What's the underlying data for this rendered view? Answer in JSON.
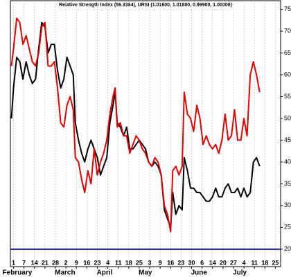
{
  "chart_data": {
    "type": "line",
    "title": "Relative Strength Index (56.3364), URSI (1.01600, 1.01800, 0.99900, 1.00000)",
    "xlim": [
      -0.3,
      25.5
    ],
    "xticks": [
      {
        "value": 0,
        "label": "1"
      },
      {
        "value": 1,
        "label": "7"
      },
      {
        "value": 2,
        "label": "14"
      },
      {
        "value": 3,
        "label": "21"
      },
      {
        "value": 4,
        "label": "28"
      },
      {
        "value": 5,
        "label": "2"
      },
      {
        "value": 6,
        "label": "9"
      },
      {
        "value": 7,
        "label": "16"
      },
      {
        "value": 8,
        "label": "23"
      },
      {
        "value": 9,
        "label": "4"
      },
      {
        "value": 10,
        "label": "11"
      },
      {
        "value": 11,
        "label": "18"
      },
      {
        "value": 12,
        "label": "25"
      },
      {
        "value": 13,
        "label": "3"
      },
      {
        "value": 14,
        "label": "9"
      },
      {
        "value": 15,
        "label": "16"
      },
      {
        "value": 16,
        "label": "23"
      },
      {
        "value": 17,
        "label": "30"
      },
      {
        "value": 18,
        "label": "6"
      },
      {
        "value": 19,
        "label": "14"
      },
      {
        "value": 20,
        "label": "20"
      },
      {
        "value": 21,
        "label": "27"
      },
      {
        "value": 22,
        "label": "4"
      },
      {
        "value": 23,
        "label": "11"
      },
      {
        "value": 24,
        "label": "18"
      },
      {
        "value": 25,
        "label": "25"
      }
    ],
    "month_labels": [
      {
        "label": "February",
        "x": 0
      },
      {
        "label": "March",
        "x": 5
      },
      {
        "label": "April",
        "x": 9
      },
      {
        "label": "May",
        "x": 13
      },
      {
        "label": "June",
        "x": 18
      },
      {
        "label": "July",
        "x": 22
      }
    ],
    "ylim": [
      16,
      77
    ],
    "yticks": [
      20,
      25,
      30,
      35,
      40,
      45,
      50,
      55,
      60,
      65,
      70,
      75
    ],
    "grid": true,
    "reference_line": {
      "value": 20,
      "color": "#1a1aa0"
    },
    "x": [
      -0.2,
      0,
      0.3,
      0.6,
      0.9,
      1.2,
      1.5,
      1.8,
      2.1,
      2.4,
      2.7,
      3.0,
      3.3,
      3.6,
      3.9,
      4.2,
      4.5,
      4.8,
      5.1,
      5.4,
      5.7,
      5.9,
      6.2,
      6.5,
      6.8,
      7.1,
      7.4,
      7.7,
      8.0,
      8.3,
      8.6,
      8.9,
      9.2,
      9.5,
      9.7,
      9.9,
      10.2,
      10.5,
      10.8,
      11.1,
      11.4,
      11.7,
      12.0,
      12.3,
      12.6,
      12.9,
      13.2,
      13.5,
      13.8,
      14.1,
      14.4,
      14.7,
      15.0,
      15.2,
      15.5,
      15.8,
      16.1,
      16.3,
      16.6,
      16.9,
      17.2,
      17.5,
      17.8,
      18.1,
      18.4,
      18.7,
      19.0,
      19.3,
      19.6,
      19.9,
      20.2,
      20.5,
      20.8,
      21.1,
      21.4,
      21.7,
      22.0,
      22.3,
      22.6,
      22.9,
      23.2,
      23.5
    ],
    "series": [
      {
        "color": "#000000",
        "values": [
          50,
          57,
          64,
          63,
          59,
          63,
          60,
          58,
          59,
          66,
          72,
          71,
          65,
          67,
          67,
          61,
          57,
          59,
          64,
          62,
          60,
          49,
          45,
          42,
          40,
          43,
          45,
          43,
          41,
          37,
          39,
          41,
          49,
          53,
          56,
          49,
          48,
          46,
          48,
          43,
          43,
          44,
          45,
          44,
          43,
          40,
          39,
          40,
          39,
          37,
          29,
          27,
          25,
          33,
          28,
          30,
          29,
          41,
          38,
          34,
          34,
          33,
          33,
          32,
          31,
          31,
          32,
          34,
          32,
          32,
          34,
          35,
          33,
          33,
          34,
          32,
          34,
          32,
          33,
          40,
          41,
          39
        ]
      },
      {
        "color": "#e00000",
        "values": [
          62,
          66,
          73,
          72,
          67,
          69,
          66,
          63,
          62,
          65,
          71,
          72,
          62,
          62,
          63,
          57,
          49,
          48,
          53,
          55,
          52,
          41,
          40,
          36,
          33,
          38,
          35,
          43,
          37,
          40,
          42,
          45,
          51,
          55,
          57,
          48,
          49,
          46,
          46,
          42,
          44,
          46,
          45,
          43,
          42,
          40,
          39,
          41,
          40,
          37,
          30,
          28,
          24,
          38,
          39,
          37,
          39,
          56,
          51,
          50,
          47,
          53,
          50,
          44,
          46,
          44,
          43,
          44,
          42,
          45,
          51,
          45,
          46,
          52,
          45,
          45,
          50,
          46,
          60,
          63,
          60,
          56
        ]
      }
    ]
  }
}
